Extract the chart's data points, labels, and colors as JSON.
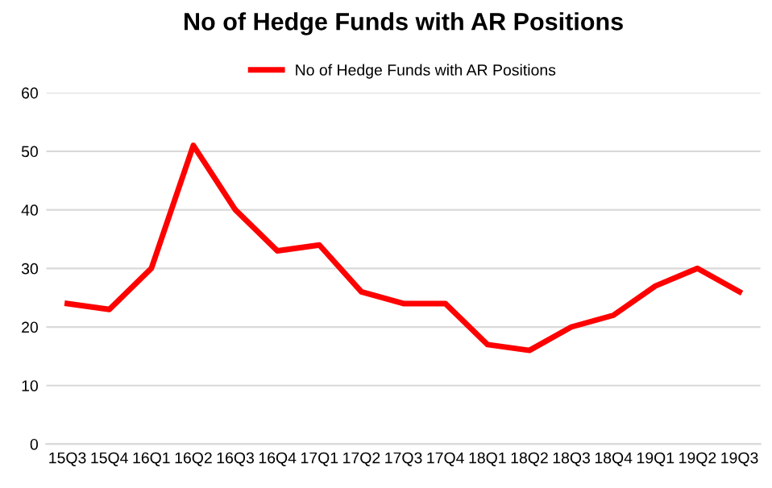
{
  "chart_data": {
    "type": "line",
    "title": "No of Hedge Funds with AR Positions",
    "categories": [
      "15Q3",
      "15Q4",
      "16Q1",
      "16Q2",
      "16Q3",
      "16Q4",
      "17Q1",
      "17Q2",
      "17Q3",
      "17Q4",
      "18Q1",
      "18Q2",
      "18Q3",
      "18Q4",
      "19Q1",
      "19Q2",
      "19Q3"
    ],
    "series": [
      {
        "name": "No of Hedge Funds with AR Positions",
        "color": "#ff0000",
        "values": [
          24,
          23,
          30,
          51,
          40,
          33,
          34,
          26,
          24,
          24,
          17,
          16,
          20,
          22,
          27,
          30,
          26
        ]
      }
    ],
    "ylim": [
      0,
      60
    ],
    "yticks": [
      0,
      10,
      20,
      30,
      40,
      50,
      60
    ],
    "grid": "y",
    "legend": "top",
    "marker": "none",
    "line_style": "solid"
  }
}
